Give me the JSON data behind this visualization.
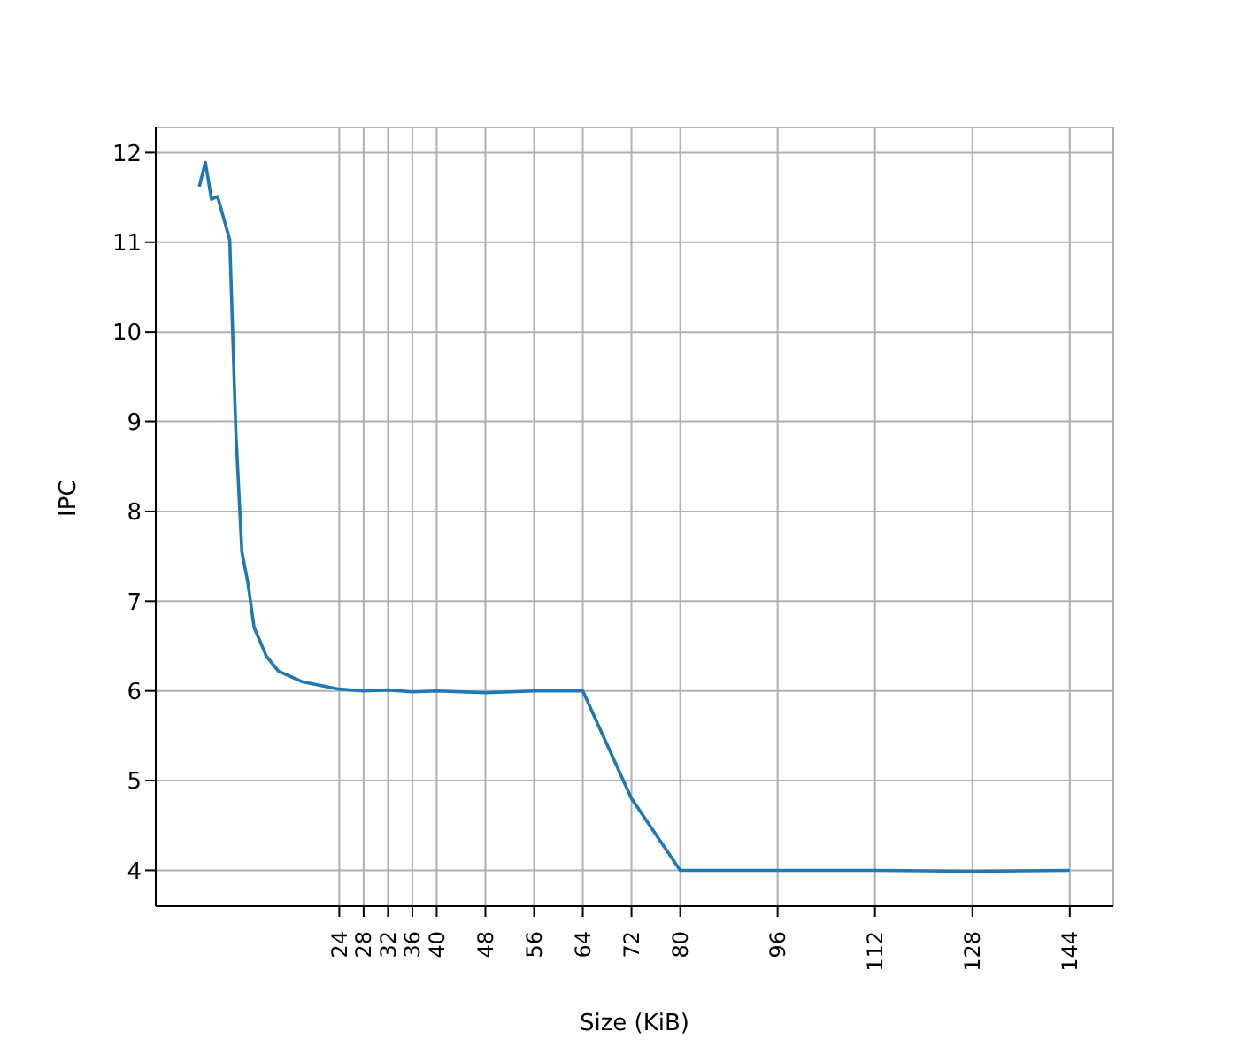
{
  "chart_data": {
    "type": "line",
    "xlabel": "Size (KiB)",
    "ylabel": "IPC",
    "x": [
      1,
      2,
      3,
      4,
      6,
      7,
      8,
      9,
      10,
      12,
      14,
      18,
      24,
      28,
      32,
      36,
      40,
      48,
      56,
      64,
      72,
      80,
      96,
      112,
      128,
      144
    ],
    "series": [
      {
        "color": "#1f77b4",
        "values": [
          11.62,
          11.89,
          11.48,
          11.51,
          11.03,
          8.9,
          7.55,
          7.2,
          6.71,
          6.39,
          6.22,
          6.1,
          6.02,
          6.0,
          6.01,
          5.99,
          6.0,
          5.98,
          6.0,
          6.0,
          4.8,
          4.0,
          4.0,
          4.0,
          3.99,
          4.0
        ]
      }
    ],
    "xlim": [
      -6.15,
      151.15
    ],
    "xticks": [
      24,
      28,
      32,
      36,
      40,
      48,
      56,
      64,
      72,
      80,
      96,
      112,
      128,
      144
    ],
    "ylim": [
      3.6,
      12.28
    ],
    "yticks": [
      4,
      5,
      6,
      7,
      8,
      9,
      10,
      11,
      12
    ],
    "grid": true,
    "line_style": "solid",
    "marker": "none"
  }
}
